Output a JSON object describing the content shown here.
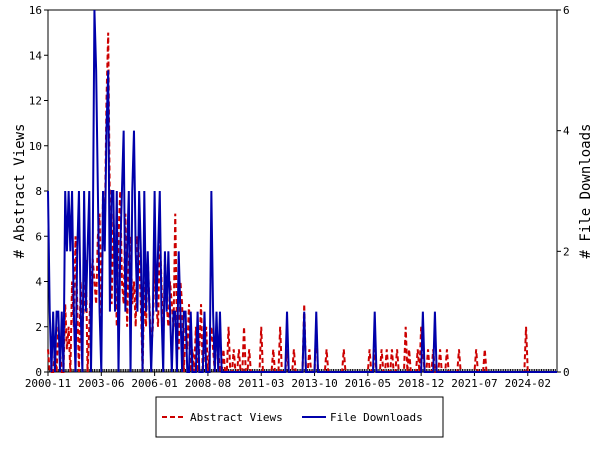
{
  "chart_data": {
    "type": "line",
    "y_label": "# Abstract Views",
    "y2_label": "# File Downloads",
    "categories": [
      "2000-11",
      "2000-12",
      "2001-01",
      "2001-02",
      "2001-03",
      "2001-04",
      "2001-05",
      "2001-06",
      "2001-07",
      "2001-08",
      "2001-09",
      "2001-10",
      "2001-11",
      "2001-12",
      "2002-01",
      "2002-02",
      "2002-03",
      "2002-04",
      "2002-05",
      "2002-06",
      "2002-07",
      "2002-08",
      "2002-09",
      "2002-10",
      "2002-11",
      "2002-12",
      "2003-01",
      "2003-02",
      "2003-03",
      "2003-04",
      "2003-05",
      "2003-06",
      "2003-07",
      "2003-08",
      "2003-09",
      "2003-10",
      "2003-11",
      "2003-12",
      "2004-01",
      "2004-02",
      "2004-03",
      "2004-04",
      "2004-05",
      "2004-06",
      "2004-07",
      "2004-08",
      "2004-09",
      "2004-10",
      "2004-11",
      "2004-12",
      "2005-01",
      "2005-02",
      "2005-03",
      "2005-04",
      "2005-05",
      "2005-06",
      "2005-07",
      "2005-08",
      "2005-09",
      "2005-10",
      "2005-11",
      "2005-12",
      "2006-01",
      "2006-02",
      "2006-03",
      "2006-04",
      "2006-05",
      "2006-06",
      "2006-07",
      "2006-08",
      "2006-09",
      "2006-10",
      "2006-11",
      "2006-12",
      "2007-01",
      "2007-02",
      "2007-03",
      "2007-04",
      "2007-05",
      "2007-06",
      "2007-07",
      "2007-08",
      "2007-09",
      "2007-10",
      "2007-11",
      "2007-12",
      "2008-01",
      "2008-02",
      "2008-03",
      "2008-04",
      "2008-05",
      "2008-06",
      "2008-07",
      "2008-08",
      "2008-09",
      "2008-10",
      "2008-11",
      "2008-12",
      "2009-01",
      "2009-02",
      "2009-03",
      "2009-04",
      "2009-05",
      "2009-06",
      "2009-07",
      "2009-08",
      "2009-09",
      "2009-10",
      "2009-11",
      "2009-12",
      "2010-01",
      "2010-02",
      "2010-03",
      "2010-04",
      "2010-05",
      "2010-06",
      "2010-07",
      "2010-08",
      "2010-09",
      "2010-10",
      "2010-11",
      "2010-12",
      "2011-01",
      "2011-02",
      "2011-03",
      "2011-04",
      "2011-05",
      "2011-06",
      "2011-07",
      "2011-08",
      "2011-09",
      "2011-10",
      "2011-11",
      "2011-12",
      "2012-01",
      "2012-02",
      "2012-03",
      "2012-04",
      "2012-05",
      "2012-06",
      "2012-07",
      "2012-08",
      "2012-09",
      "2012-10",
      "2012-11",
      "2012-12",
      "2013-01",
      "2013-02",
      "2013-03",
      "2013-04",
      "2013-05",
      "2013-06",
      "2013-07",
      "2013-08",
      "2013-09",
      "2013-10",
      "2013-11",
      "2013-12",
      "2014-01",
      "2014-02",
      "2014-03",
      "2014-04",
      "2014-05",
      "2014-06",
      "2014-07",
      "2014-08",
      "2014-09",
      "2014-10",
      "2014-11",
      "2014-12",
      "2015-01",
      "2015-02",
      "2015-03",
      "2015-04",
      "2015-05",
      "2015-06",
      "2015-07",
      "2015-08",
      "2015-09",
      "2015-10",
      "2015-11",
      "2015-12",
      "2016-01",
      "2016-02",
      "2016-03",
      "2016-04",
      "2016-05",
      "2016-06",
      "2016-07",
      "2016-08",
      "2016-09",
      "2016-10",
      "2016-11",
      "2016-12",
      "2017-01",
      "2017-02",
      "2017-03",
      "2017-04",
      "2017-05",
      "2017-06",
      "2017-07",
      "2017-08",
      "2017-09",
      "2017-10",
      "2017-11",
      "2017-12",
      "2018-01",
      "2018-02",
      "2018-03",
      "2018-04",
      "2018-05",
      "2018-06",
      "2018-07",
      "2018-08",
      "2018-09",
      "2018-10",
      "2018-11",
      "2018-12",
      "2019-01",
      "2019-02",
      "2019-03",
      "2019-04",
      "2019-05",
      "2019-06",
      "2019-07",
      "2019-08",
      "2019-09",
      "2019-10",
      "2019-11",
      "2019-12",
      "2020-01",
      "2020-02",
      "2020-03",
      "2020-04",
      "2020-05",
      "2020-06",
      "2020-07",
      "2020-08",
      "2020-09",
      "2020-10",
      "2020-11",
      "2020-12",
      "2021-01",
      "2021-02",
      "2021-03",
      "2021-04",
      "2021-05",
      "2021-06",
      "2021-07",
      "2021-08",
      "2021-09",
      "2021-10",
      "2021-11",
      "2021-12",
      "2022-01",
      "2022-02",
      "2022-03",
      "2022-04",
      "2022-05",
      "2022-06",
      "2022-07",
      "2022-08",
      "2022-09",
      "2022-10",
      "2022-11",
      "2022-12",
      "2023-01",
      "2023-02",
      "2023-03",
      "2023-04",
      "2023-05",
      "2023-06",
      "2023-07",
      "2023-08",
      "2023-09",
      "2023-10",
      "2023-11",
      "2023-12",
      "2024-01",
      "2024-02",
      "2024-03",
      "2024-04",
      "2024-05",
      "2024-06",
      "2024-07",
      "2024-08",
      "2024-09",
      "2024-10",
      "2024-11",
      "2024-12",
      "2025-01",
      "2025-02",
      "2025-03",
      "2025-04",
      "2025-05",
      "2025-06",
      "2025-07"
    ],
    "xticks": [
      "2000-11",
      "2003-06",
      "2006-01",
      "2008-08",
      "2011-03",
      "2013-10",
      "2016-05",
      "2018-12",
      "2021-07",
      "2024-02"
    ],
    "ylim": [
      0,
      16
    ],
    "yticks": [
      0,
      2,
      4,
      6,
      8,
      10,
      12,
      14,
      16
    ],
    "y2lim": [
      0,
      6
    ],
    "y2ticks": [
      0,
      2,
      4,
      6
    ],
    "series": [
      {
        "name": "Abstract Views",
        "color": "#cc0000",
        "dash": true,
        "values": [
          1,
          0,
          0,
          0,
          1,
          0,
          2,
          1,
          0,
          0,
          3,
          1,
          2,
          0,
          4,
          2,
          6,
          3,
          0,
          4,
          2,
          3,
          5,
          0,
          2,
          4,
          5,
          4,
          3,
          6,
          7,
          2,
          8,
          6,
          12,
          15,
          7,
          3,
          7,
          5,
          2,
          6,
          8,
          4,
          3,
          7,
          2,
          5,
          6,
          3,
          4,
          2,
          6,
          5,
          3,
          0,
          4,
          2,
          5,
          3,
          1,
          2,
          5,
          3,
          2,
          6,
          4,
          1,
          5,
          3,
          2,
          4,
          3,
          2,
          7,
          2,
          1,
          4,
          3,
          0,
          2,
          1,
          3,
          0,
          1,
          0,
          2,
          0,
          1,
          3,
          0,
          1,
          2,
          0,
          1,
          2,
          1,
          0,
          2,
          1,
          0,
          0,
          1,
          0,
          0,
          2,
          0,
          0,
          1,
          0,
          0,
          1,
          0,
          0,
          2,
          0,
          0,
          1,
          0,
          0,
          0,
          0,
          0,
          0,
          2,
          0,
          0,
          0,
          0,
          0,
          0,
          1,
          0,
          0,
          0,
          2,
          0,
          0,
          0,
          1,
          0,
          0,
          0,
          1,
          0,
          0,
          0,
          0,
          0,
          3,
          0,
          0,
          1,
          0,
          0,
          0,
          2,
          0,
          0,
          0,
          0,
          0,
          1,
          0,
          0,
          0,
          0,
          0,
          0,
          0,
          0,
          0,
          1,
          0,
          0,
          0,
          0,
          0,
          0,
          0,
          0,
          0,
          0,
          0,
          0,
          0,
          0,
          1,
          0,
          0,
          1,
          0,
          0,
          0,
          1,
          0,
          0,
          1,
          0,
          0,
          1,
          0,
          0,
          1,
          0,
          0,
          0,
          0,
          2,
          0,
          1,
          0,
          0,
          0,
          0,
          1,
          0,
          2,
          1,
          0,
          0,
          1,
          0,
          0,
          1,
          0,
          0,
          0,
          1,
          0,
          0,
          0,
          1,
          0,
          0,
          0,
          0,
          0,
          0,
          1,
          0,
          0,
          0,
          0,
          0,
          0,
          0,
          0,
          0,
          1,
          0,
          0,
          0,
          0,
          1,
          0,
          0,
          0,
          0,
          0,
          0,
          0,
          0,
          0,
          0,
          0,
          0,
          0,
          0,
          0,
          0,
          0,
          0,
          0,
          0,
          0,
          0,
          0,
          2,
          0,
          0,
          0,
          0,
          0,
          0,
          0,
          0,
          0,
          0,
          0,
          0,
          0,
          0,
          0,
          0,
          0,
          0
        ]
      },
      {
        "name": "File Downloads",
        "color": "#0000aa",
        "axis": "y2",
        "values": [
          3,
          1,
          0,
          1,
          0,
          1,
          1,
          0,
          1,
          0,
          3,
          2,
          3,
          2,
          3,
          1,
          0,
          2,
          3,
          1,
          0,
          3,
          1,
          2,
          3,
          0,
          2,
          6,
          5,
          3,
          1,
          0,
          3,
          2,
          4,
          5,
          1,
          3,
          3,
          1,
          3,
          0,
          2,
          3,
          4,
          1,
          2,
          3,
          0,
          3,
          4,
          2,
          1,
          3,
          2,
          0,
          3,
          1,
          2,
          1,
          0,
          1,
          3,
          1,
          2,
          3,
          1,
          0,
          2,
          1,
          2,
          1,
          0,
          1,
          1,
          0,
          2,
          1,
          0,
          1,
          1,
          0,
          0,
          1,
          0,
          0,
          0,
          1,
          0,
          0,
          0,
          1,
          0,
          0,
          0,
          3,
          1,
          0,
          1,
          0,
          1,
          0,
          0,
          0,
          0,
          0,
          0,
          0,
          0,
          0,
          0,
          0,
          0,
          0,
          0,
          0,
          0,
          0,
          0,
          0,
          0,
          0,
          0,
          0,
          0,
          0,
          0,
          0,
          0,
          0,
          0,
          0,
          0,
          0,
          0,
          0,
          0,
          0,
          0,
          1,
          0,
          0,
          0,
          0,
          0,
          0,
          0,
          0,
          0,
          1,
          0,
          0,
          0,
          0,
          0,
          0,
          1,
          0,
          0,
          0,
          0,
          0,
          0,
          0,
          0,
          0,
          0,
          0,
          0,
          0,
          0,
          0,
          0,
          0,
          0,
          0,
          0,
          0,
          0,
          0,
          0,
          0,
          0,
          0,
          0,
          0,
          0,
          0,
          0,
          0,
          1,
          0,
          0,
          0,
          0,
          0,
          0,
          0,
          0,
          0,
          0,
          0,
          0,
          0,
          0,
          0,
          0,
          0,
          0,
          0,
          0,
          0,
          0,
          0,
          0,
          0,
          0,
          0,
          1,
          0,
          0,
          0,
          0,
          0,
          0,
          1,
          0,
          0,
          0,
          0,
          0,
          0,
          0,
          0,
          0,
          0,
          0,
          0,
          0,
          0,
          0,
          0,
          0,
          0,
          0,
          0,
          0,
          0,
          0,
          0,
          0,
          0,
          0,
          0,
          0,
          0,
          0,
          0,
          0,
          0,
          0,
          0,
          0,
          0,
          0,
          0,
          0,
          0,
          0,
          0,
          0,
          0,
          0,
          0,
          0,
          0,
          0,
          0,
          0,
          0,
          0,
          0,
          0,
          0,
          0,
          0,
          0,
          0,
          0,
          0,
          0,
          0,
          0,
          0,
          0,
          0,
          0
        ]
      }
    ]
  }
}
